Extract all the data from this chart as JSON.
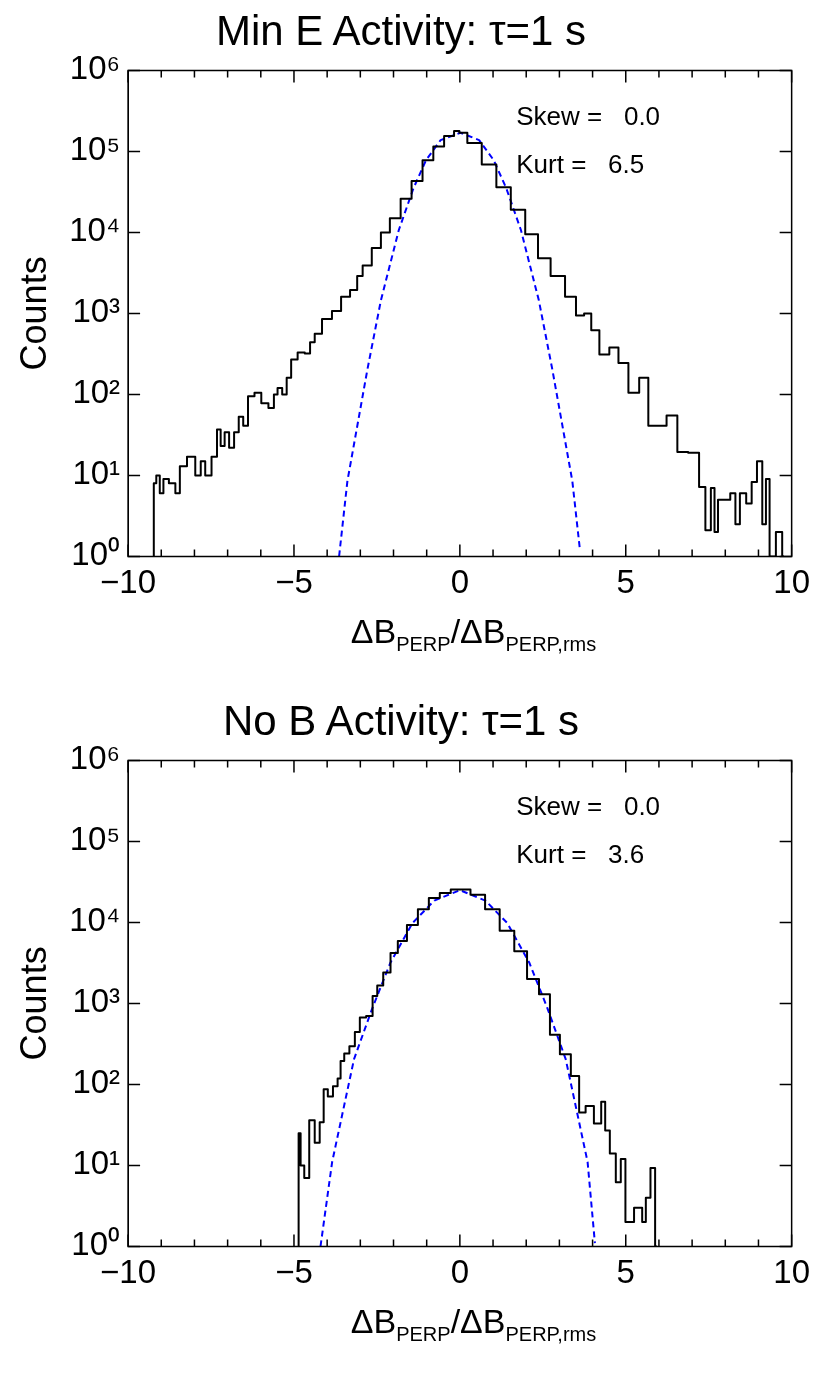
{
  "chart_data": [
    {
      "type": "step",
      "title": "Min E Activity: τ=1 s",
      "xlabel": "ΔB$_{PERP}$/ΔB$_{PERP,rms}$",
      "ylabel": "Counts",
      "log": "y",
      "grid": false,
      "legend": false,
      "marker": "none",
      "xlim": [
        -10,
        10
      ],
      "ylim": [
        1,
        1000000
      ],
      "xticks": [
        {
          "value": -10,
          "label": "−10"
        },
        {
          "value": -9,
          "label": null
        },
        {
          "value": -8,
          "label": null
        },
        {
          "value": -7,
          "label": null
        },
        {
          "value": -6,
          "label": null
        },
        {
          "value": -5,
          "label": "−5"
        },
        {
          "value": -4,
          "label": null
        },
        {
          "value": -3,
          "label": null
        },
        {
          "value": -2,
          "label": null
        },
        {
          "value": -1,
          "label": null
        },
        0,
        {
          "value": 1,
          "label": null
        },
        {
          "value": 2,
          "label": null
        },
        {
          "value": 3,
          "label": null
        },
        {
          "value": 4,
          "label": null
        },
        5,
        {
          "value": 6,
          "label": null
        },
        {
          "value": 7,
          "label": null
        },
        {
          "value": 8,
          "label": null
        },
        {
          "value": 9,
          "label": null
        },
        10
      ],
      "yticks": [
        {
          "value": 1,
          "label": "10⁰"
        },
        {
          "value": 10,
          "label": "10¹"
        },
        {
          "value": 100,
          "label": "10²"
        },
        {
          "value": 1000,
          "label": "10³"
        },
        {
          "value": 10000,
          "label": "10⁴"
        },
        {
          "value": 100000,
          "label": "10⁵"
        },
        {
          "value": 1000000,
          "label": "10⁶"
        }
      ],
      "annotations": [
        "Skew =   0.0",
        "Kurt =   6.5"
      ],
      "series": [
        {
          "color": "#000000",
          "line_style": "solid",
          "x": [
            -9.25,
            -9.2,
            -9.1,
            -8.99,
            -8.88,
            -8.66,
            -8.49,
            -8.39,
            -8.06,
            -7.89,
            -7.73,
            -7.62,
            -7.35,
            -7.29,
            -7.13,
            -7.05,
            -6.86,
            -6.75,
            -6.58,
            -6.48,
            -6.29,
            -6.09,
            -5.88,
            -5.66,
            -5.55,
            -5.44,
            -5.27,
            -5.17,
            -5.0,
            -4.78,
            -4.57,
            -4.46,
            -4.29,
            -4.02,
            -3.69,
            -3.47,
            -3.15,
            -3.04,
            -2.82,
            -2.49,
            -2.27,
            -1.95,
            -1.62,
            -1.29,
            -0.96,
            -0.64,
            -0.31,
            -0.04,
            0.01,
            0.44,
            0.88,
            1.32,
            1.75,
            2.19,
            2.52,
            2.95,
            3.39,
            3.61,
            3.88,
            4.04,
            4.37,
            4.64,
            4.92,
            5.24,
            5.57,
            5.79,
            6.01,
            6.45,
            6.66,
            7.1,
            7.32,
            7.48,
            7.65,
            7.7,
            7.86,
            8.05,
            8.25,
            8.36,
            8.52,
            8.74,
            8.85,
            9.06,
            9.17,
            9.28,
            9.39,
            9.66,
            9.77
          ],
          "values": [
            1,
            8,
            10,
            6,
            9,
            8,
            6,
            13,
            17,
            10,
            15,
            10,
            17,
            37,
            23,
            34,
            22,
            34,
            53,
            41,
            95,
            105,
            78,
            68,
            100,
            120,
            100,
            160,
            270,
            330,
            320,
            440,
            560,
            850,
            1070,
            1600,
            1950,
            2900,
            3900,
            6400,
            10000,
            15000,
            26000,
            43000,
            78000,
            115000,
            155000,
            178000,
            170000,
            127000,
            69000,
            36000,
            19000,
            9500,
            4800,
            2900,
            1600,
            940,
            1000,
            620,
            310,
            380,
            245,
            105,
            160,
            41,
            41,
            55,
            19.5,
            19,
            7.2,
            2.1,
            7,
            2,
            5,
            5,
            6,
            2.5,
            6,
            4.5,
            8.3,
            15,
            2.5,
            9,
            1,
            2,
            1
          ]
        },
        {
          "type": "line",
          "color": "#0000ff",
          "line_style": "dashed",
          "x": [
            -3.64,
            -3.39,
            -2.79,
            -2.38,
            -1.84,
            -1.4,
            -1.02,
            -0.58,
            0.02,
            0.58,
            1.02,
            1.4,
            1.84,
            2.38,
            2.79,
            3.39,
            3.61
          ],
          "values": [
            1,
            8.5,
            200,
            1450,
            10700,
            35000,
            78000,
            138000,
            170000,
            138000,
            78000,
            35000,
            10700,
            1450,
            200,
            8.5,
            1.3
          ]
        }
      ]
    },
    {
      "type": "step",
      "title": "No B Activity: τ=1 s",
      "xlabel": "ΔB$_{PERP}$/ΔB$_{PERP,rms}$",
      "ylabel": "Counts",
      "log": "y",
      "grid": false,
      "legend": false,
      "marker": "none",
      "xlim": [
        -10,
        10
      ],
      "ylim": [
        1,
        1000000
      ],
      "xticks": [
        {
          "value": -10,
          "label": "−10"
        },
        {
          "value": -9,
          "label": null
        },
        {
          "value": -8,
          "label": null
        },
        {
          "value": -7,
          "label": null
        },
        {
          "value": -6,
          "label": null
        },
        {
          "value": -5,
          "label": "−5"
        },
        {
          "value": -4,
          "label": null
        },
        {
          "value": -3,
          "label": null
        },
        {
          "value": -2,
          "label": null
        },
        {
          "value": -1,
          "label": null
        },
        0,
        {
          "value": 1,
          "label": null
        },
        {
          "value": 2,
          "label": null
        },
        {
          "value": 3,
          "label": null
        },
        {
          "value": 4,
          "label": null
        },
        5,
        {
          "value": 6,
          "label": null
        },
        {
          "value": 7,
          "label": null
        },
        {
          "value": 8,
          "label": null
        },
        {
          "value": 9,
          "label": null
        },
        10
      ],
      "yticks": [
        {
          "value": 1,
          "label": "10⁰"
        },
        {
          "value": 10,
          "label": "10¹"
        },
        {
          "value": 100,
          "label": "10²"
        },
        {
          "value": 1000,
          "label": "10³"
        },
        {
          "value": 10000,
          "label": "10⁴"
        },
        {
          "value": 100000,
          "label": "10⁵"
        },
        {
          "value": 1000000,
          "label": "10⁶"
        }
      ],
      "annotations": [
        "Skew =   0.0",
        "Kurt =   3.6"
      ],
      "series": [
        {
          "color": "#000000",
          "line_style": "solid",
          "x": [
            -4.88,
            -4.84,
            -4.76,
            -4.62,
            -4.46,
            -4.29,
            -4.16,
            -4.05,
            -3.91,
            -3.74,
            -3.63,
            -3.56,
            -3.41,
            -3.25,
            -3.08,
            -2.95,
            -2.7,
            -2.56,
            -2.42,
            -2.2,
            -1.98,
            -1.76,
            -1.43,
            -1.1,
            -0.77,
            -0.44,
            -0.11,
            0.1,
            0.54,
            0.98,
            1.42,
            1.86,
            2.19,
            2.58,
            2.85,
            3.18,
            3.51,
            3.68,
            3.9,
            4.18,
            4.34,
            4.42,
            4.62,
            4.78,
            4.92,
            5.06,
            5.44,
            5.55,
            5.66,
            5.83,
            5.94
          ],
          "values": [
            1,
            25,
            10,
            7,
            36,
            19,
            34,
            87,
            71,
            95,
            118,
            195,
            240,
            295,
            445,
            670,
            700,
            1230,
            1660,
            2400,
            4200,
            5900,
            9300,
            14500,
            20000,
            23000,
            25500,
            25500,
            22000,
            14500,
            7900,
            4400,
            2000,
            1300,
            410,
            235,
            127,
            45,
            54,
            33,
            61,
            27,
            14,
            6.2,
            12,
            2,
            3,
            2,
            4,
            9.3,
            1
          ]
        },
        {
          "type": "line",
          "color": "#0000ff",
          "line_style": "dashed",
          "x": [
            -4.2,
            -3.85,
            -3.19,
            -2.64,
            -2.09,
            -1.43,
            -0.77,
            0.0,
            0.77,
            1.43,
            2.09,
            2.64,
            3.19,
            3.85,
            4.07
          ],
          "values": [
            1,
            11,
            205,
            870,
            3200,
            9800,
            18600,
            25000,
            18600,
            9800,
            3200,
            870,
            205,
            11,
            1.1
          ]
        }
      ]
    }
  ]
}
